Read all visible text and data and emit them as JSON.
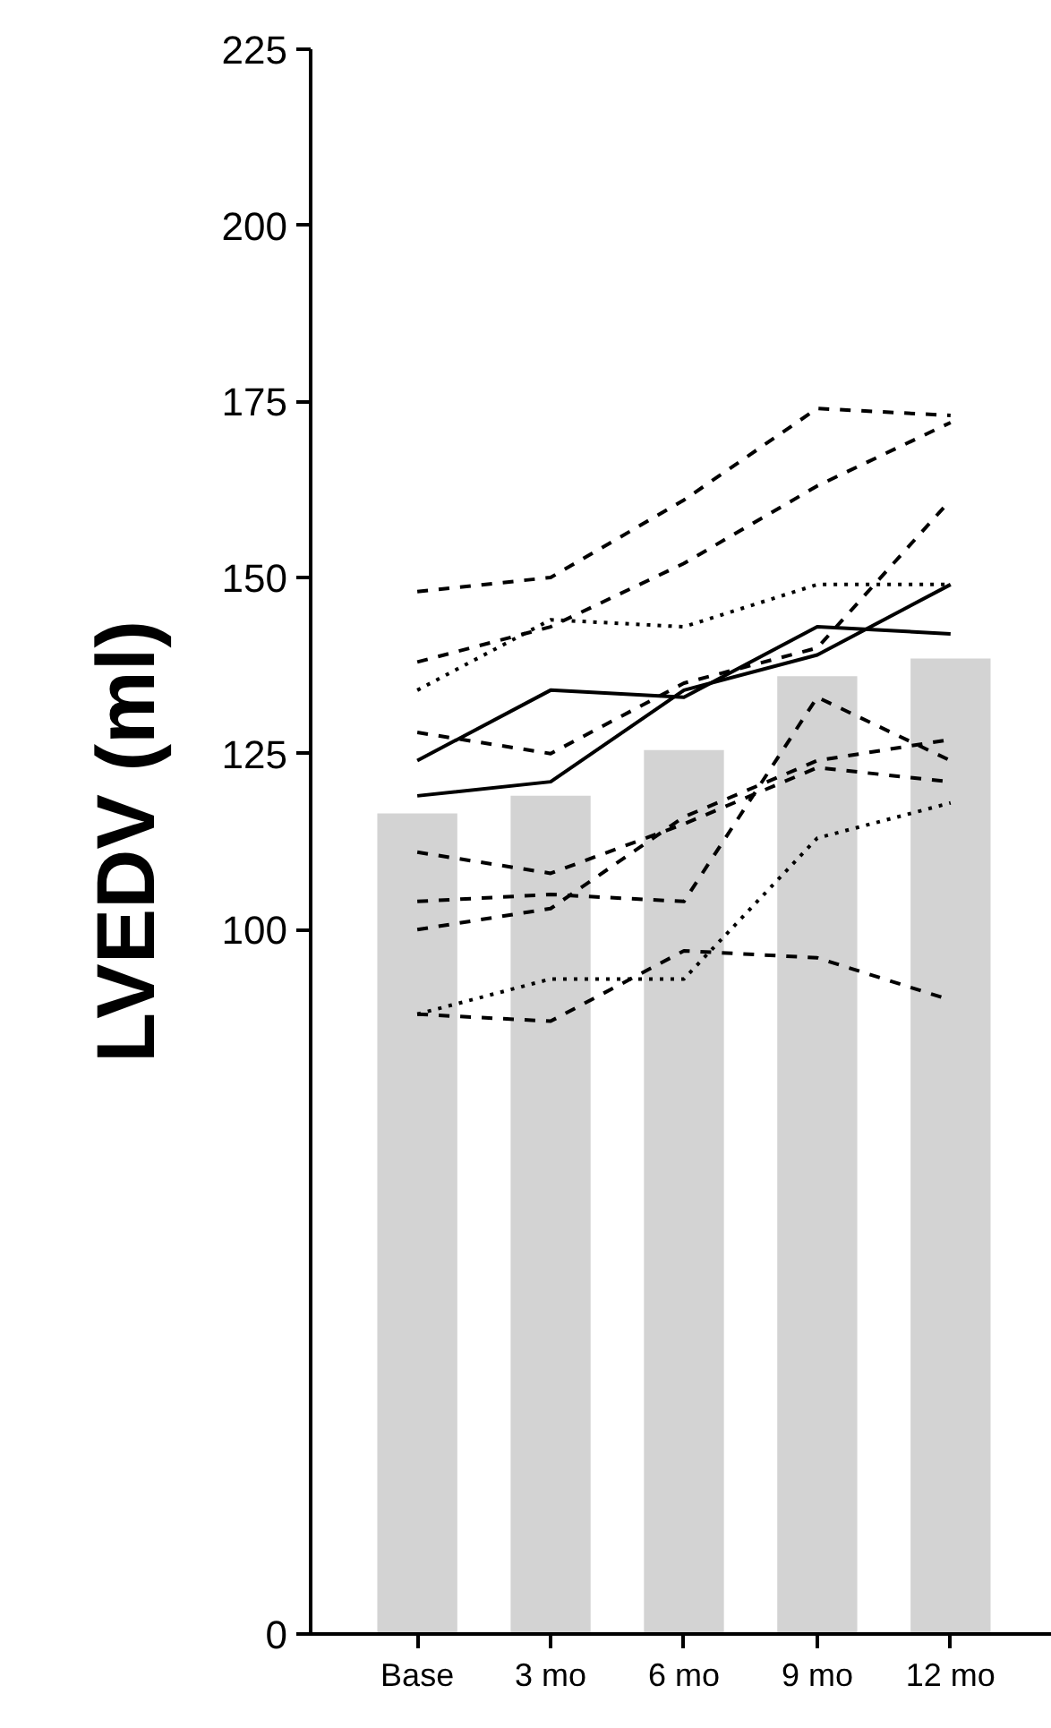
{
  "chart_data": {
    "type": "line",
    "ylabel": "LVEDV (ml)",
    "categories": [
      "Base",
      "3 mo",
      "6 mo",
      "9 mo",
      "12 mo"
    ],
    "ylim": [
      0,
      225
    ],
    "yticks": [
      0,
      100,
      125,
      150,
      175,
      200,
      225
    ],
    "grid": false,
    "series": [
      {
        "type": "bar",
        "color": "#d3d3d3",
        "values": [
          116.5,
          119,
          125.5,
          136,
          138.5
        ]
      },
      {
        "color": "#000000",
        "line_style": "dashed",
        "values": [
          148,
          150,
          161,
          174,
          173
        ]
      },
      {
        "color": "#000000",
        "line_style": "dashed",
        "values": [
          138,
          143,
          152,
          163,
          172
        ]
      },
      {
        "color": "#000000",
        "line_style": "dotted",
        "values": [
          134,
          144,
          143,
          149,
          149
        ]
      },
      {
        "color": "#000000",
        "line_style": "solid",
        "values": [
          124,
          134,
          133,
          143,
          142
        ]
      },
      {
        "color": "#000000",
        "line_style": "solid",
        "values": [
          119,
          121,
          134,
          139,
          149
        ]
      },
      {
        "color": "#000000",
        "line_style": "dashed",
        "values": [
          128,
          125,
          135,
          140,
          161
        ]
      },
      {
        "color": "#000000",
        "line_style": "dashed",
        "values": [
          111,
          108,
          115,
          123,
          121
        ]
      },
      {
        "color": "#000000",
        "line_style": "dashed",
        "values": [
          100,
          103,
          116,
          124,
          127
        ]
      },
      {
        "color": "#000000",
        "line_style": "dashed",
        "values": [
          104,
          105,
          104,
          133,
          124
        ]
      },
      {
        "color": "#000000",
        "line_style": "dotted",
        "values": [
          88,
          93,
          93,
          113,
          118
        ]
      },
      {
        "color": "#000000",
        "line_style": "dashed",
        "values": [
          88,
          87,
          97,
          96,
          90
        ]
      }
    ]
  }
}
